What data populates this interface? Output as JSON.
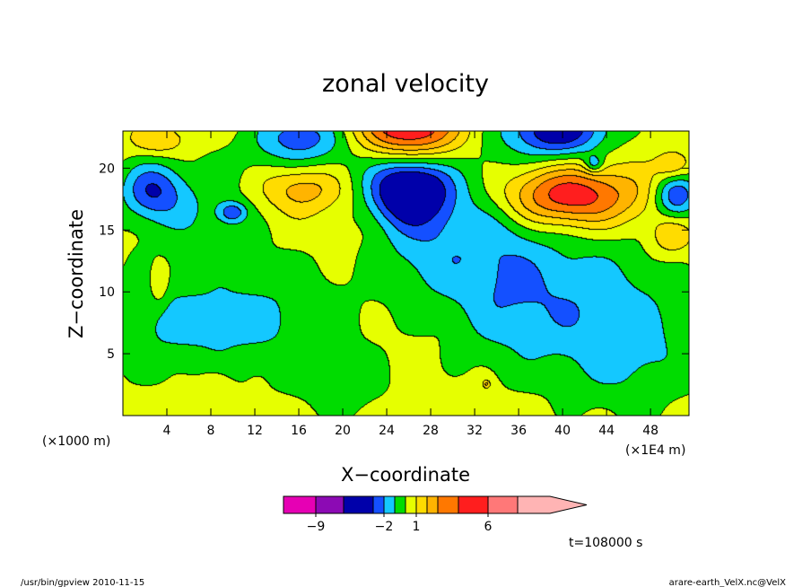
{
  "header": {
    "title": "zonal velocity"
  },
  "axes": {
    "xlabel": "X−coordinate",
    "ylabel": "Z−coordinate",
    "x_unit": "(×1E4 m)",
    "y_unit": "(×1000 m)"
  },
  "footer": {
    "time": "t=108000 s",
    "program": "/usr/bin/gpview   2010-11-15",
    "source": "arare-earth_VelX.nc@VelX"
  },
  "chart_data": {
    "type": "heatmap",
    "title": "zonal velocity",
    "xlabel": "X−coordinate",
    "ylabel": "Z−coordinate",
    "xlim": [
      0,
      51.5
    ],
    "ylim": [
      0,
      23
    ],
    "x_ticks": [
      4,
      8,
      12,
      16,
      20,
      24,
      28,
      32,
      36,
      40,
      44,
      48
    ],
    "y_ticks": [
      5,
      10,
      15,
      20
    ],
    "x_unit_label": "(×1E4 m)",
    "y_unit_label": "(×1000 m)",
    "levels": [
      -12,
      -9,
      -6,
      -3,
      -2,
      -1,
      0,
      1,
      2,
      3,
      4,
      6,
      9,
      12
    ],
    "colors": [
      "#e600b4",
      "#8c0ab4",
      "#0000aa",
      "#1450ff",
      "#14c8ff",
      "#00dc00",
      "#e6ff00",
      "#ffdc00",
      "#ffb400",
      "#ff7800",
      "#ff1e1e",
      "#ff7878",
      "#ffb4b4"
    ],
    "colorbar_tick_labels": [
      {
        "label": "−9",
        "level": -9
      },
      {
        "label": "−2",
        "level": -2
      },
      {
        "label": "1",
        "level": 1
      },
      {
        "label": "6",
        "level": 6
      }
    ],
    "background_value": 0.5,
    "features": [
      {
        "x": 26,
        "y": 18.3,
        "sx": 2.6,
        "sy": 1.9,
        "v": -5.5
      },
      {
        "x": 2.6,
        "y": 18.3,
        "sx": 2.0,
        "sy": 1.6,
        "v": -3.0
      },
      {
        "x": 39.5,
        "y": 23.2,
        "sx": 3.2,
        "sy": 1.6,
        "v": -4.5
      },
      {
        "x": 16,
        "y": 22.8,
        "sx": 2.6,
        "sy": 1.3,
        "v": -2.5
      },
      {
        "x": 9.9,
        "y": 16.5,
        "sx": 0.9,
        "sy": 0.6,
        "v": -2.5
      },
      {
        "x": 50.3,
        "y": 17.8,
        "sx": 1.4,
        "sy": 1.3,
        "v": -3.5
      },
      {
        "x": 42.8,
        "y": 20.4,
        "sx": 0.6,
        "sy": 0.5,
        "v": -2.2
      },
      {
        "x": 26,
        "y": 23.3,
        "sx": 3.2,
        "sy": 1.8,
        "v": 5.0
      },
      {
        "x": 40.5,
        "y": 17.8,
        "sx": 4.5,
        "sy": 1.7,
        "v": 4.5
      },
      {
        "x": 16.2,
        "y": 18.5,
        "sx": 2.6,
        "sy": 1.4,
        "v": 2.3
      },
      {
        "x": 49.8,
        "y": 14.6,
        "sx": 1.3,
        "sy": 1.1,
        "v": 1.7
      },
      {
        "x": 50,
        "y": 20.2,
        "sx": 1.1,
        "sy": 0.8,
        "v": 1.7
      },
      {
        "x": 3.2,
        "y": 22.3,
        "sx": 1.7,
        "sy": 0.8,
        "v": 1.6
      },
      {
        "x": 3.2,
        "y": 10.7,
        "sx": 0.6,
        "sy": 1.2,
        "v": 1.5
      },
      {
        "x": 2.5,
        "y": 7.5,
        "sx": 6.0,
        "sy": 3.0,
        "v": -1.3
      },
      {
        "x": 13,
        "y": 8.0,
        "sx": 6.0,
        "sy": 3.5,
        "v": -1.4
      },
      {
        "x": 20,
        "y": 2.5,
        "sx": 3.0,
        "sy": 2.0,
        "v": -1.0
      },
      {
        "x": 33,
        "y": 15.5,
        "sx": 3.5,
        "sy": 4.5,
        "v": -1.6
      },
      {
        "x": 42,
        "y": 10,
        "sx": 5.5,
        "sy": 4.0,
        "v": -1.6
      },
      {
        "x": 46,
        "y": 5.0,
        "sx": 4.5,
        "sy": 3.5,
        "v": -1.5
      },
      {
        "x": 35,
        "y": 9,
        "sx": 4.0,
        "sy": 4.0,
        "v": -1.3
      },
      {
        "x": 16.5,
        "y": 21.0,
        "sx": 5.0,
        "sy": 1.6,
        "v": -1.2
      },
      {
        "x": 6.5,
        "y": 16.5,
        "sx": 4.0,
        "sy": 2.5,
        "v": -1.2
      },
      {
        "x": 27,
        "y": 13.5,
        "sx": 3.0,
        "sy": 3.0,
        "v": -1.5
      },
      {
        "x": 8.3,
        "y": 2.6,
        "sx": 1.0,
        "sy": 0.8,
        "v": 1.0
      },
      {
        "x": 33,
        "y": 2.6,
        "sx": 0.25,
        "sy": 0.25,
        "v": 2.0
      }
    ]
  }
}
